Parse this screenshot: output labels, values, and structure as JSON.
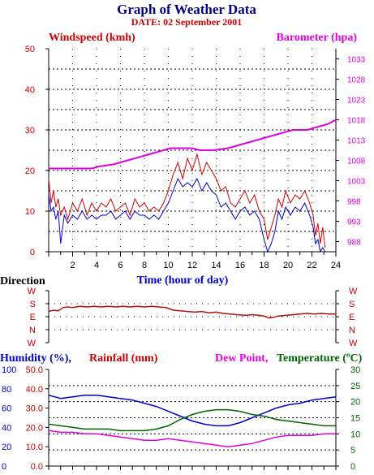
{
  "header": {
    "title": "Graph of Weather Data",
    "date": "DATE: 02 September 2001"
  },
  "colors": {
    "wind_speed": "#cc0000",
    "wind_gust": "#0000cc",
    "barometer": "#e000e0",
    "direction": "#b01010",
    "humidity": "#0000cc",
    "rainfall": "#cc0000",
    "dew_point": "#e000e0",
    "temperature": "#006400",
    "title": "#000080"
  },
  "chart_data": [
    {
      "id": "wind",
      "type": "line",
      "left_label": "Windspeed (kmh)",
      "right_label": "Barometer (hpa)",
      "xlabel": "Time (hour of day)",
      "xlim": [
        0,
        24
      ],
      "x_ticks": [
        2,
        4,
        6,
        8,
        10,
        12,
        14,
        16,
        18,
        20,
        22,
        24
      ],
      "ylim": [
        0,
        50
      ],
      "y_ticks": [
        0,
        10,
        20,
        30,
        40,
        50
      ],
      "y2lim": [
        985.5,
        1035.5
      ],
      "y2_ticks": [
        988,
        993,
        998,
        1003,
        1008,
        1013,
        1018,
        1023,
        1028,
        1033
      ],
      "grid": "dotted",
      "series": [
        {
          "role": "windspeed",
          "axis": "left",
          "x": [
            0,
            0.2,
            0.4,
            0.6,
            0.8,
            1.0,
            1.3,
            1.6,
            2.0,
            2.4,
            2.8,
            3.2,
            3.6,
            4.0,
            4.4,
            4.8,
            5.2,
            5.6,
            6.0,
            6.4,
            6.8,
            7.2,
            7.6,
            8.0,
            8.4,
            8.8,
            9.2,
            9.6,
            10.0,
            10.4,
            10.8,
            11.2,
            11.6,
            12.0,
            12.4,
            12.8,
            13.2,
            13.6,
            14.0,
            14.4,
            14.8,
            15.2,
            15.6,
            16.0,
            16.4,
            16.8,
            17.2,
            17.6,
            18.0,
            18.3,
            18.6,
            18.9,
            19.2,
            19.5,
            19.8,
            20.2,
            20.6,
            21.0,
            21.4,
            21.8,
            22.1,
            22.3,
            22.5,
            22.7,
            22.9,
            23.1
          ],
          "y": [
            18,
            12,
            15,
            11,
            13,
            9,
            11,
            8,
            12,
            10,
            13,
            9,
            12,
            10,
            12,
            11,
            13,
            10,
            11,
            12,
            9,
            13,
            11,
            12,
            10,
            11,
            10,
            12,
            15,
            19,
            22,
            18,
            23,
            20,
            24,
            19,
            22,
            20,
            18,
            15,
            16,
            12,
            11,
            13,
            15,
            12,
            14,
            10,
            8,
            3,
            6,
            9,
            13,
            11,
            15,
            12,
            14,
            13,
            15,
            12,
            9,
            4,
            7,
            2,
            6,
            1
          ]
        },
        {
          "role": "gust",
          "axis": "left",
          "x": [
            0,
            0.2,
            0.4,
            0.6,
            0.8,
            1.0,
            1.3,
            1.6,
            2.0,
            2.4,
            2.8,
            3.2,
            3.6,
            4.0,
            4.4,
            4.8,
            5.2,
            5.6,
            6.0,
            6.4,
            6.8,
            7.2,
            7.6,
            8.0,
            8.4,
            8.8,
            9.2,
            9.6,
            10.0,
            10.4,
            10.8,
            11.2,
            11.6,
            12.0,
            12.4,
            12.8,
            13.2,
            13.6,
            14.0,
            14.4,
            14.8,
            15.2,
            15.6,
            16.0,
            16.4,
            16.8,
            17.2,
            17.6,
            18.0,
            18.3,
            18.6,
            18.9,
            19.2,
            19.5,
            19.8,
            20.2,
            20.6,
            21.0,
            21.4,
            21.8,
            22.1,
            22.3,
            22.5,
            22.7,
            22.9,
            23.1
          ],
          "y": [
            14,
            10,
            11,
            8,
            10,
            2,
            9,
            7,
            9,
            8,
            10,
            8,
            9,
            8,
            9,
            9,
            10,
            8,
            9,
            10,
            8,
            10,
            9,
            9,
            8,
            9,
            8,
            10,
            12,
            15,
            18,
            16,
            17,
            16,
            18,
            15,
            17,
            15,
            14,
            11,
            12,
            10,
            8,
            10,
            11,
            9,
            10,
            8,
            3,
            0,
            2,
            5,
            10,
            8,
            11,
            9,
            11,
            10,
            12,
            9,
            6,
            2,
            3,
            0,
            1,
            0
          ]
        },
        {
          "role": "barometer",
          "axis": "right",
          "x": [
            0,
            2.4,
            3.6,
            4.2,
            5.4,
            6.0,
            6.6,
            7.2,
            7.8,
            8.4,
            9.0,
            9.6,
            10.2,
            10.8,
            12.0,
            12.6,
            13.8,
            15.0,
            15.6,
            16.2,
            16.8,
            17.4,
            18.0,
            18.6,
            19.2,
            19.8,
            20.4,
            21.6,
            22.2,
            22.8,
            23.4,
            24.0
          ],
          "y": [
            1006,
            1006,
            1006,
            1006.5,
            1007,
            1007.5,
            1008,
            1008.5,
            1009,
            1009.5,
            1010,
            1010.5,
            1011,
            1011,
            1011,
            1010.5,
            1010.5,
            1011,
            1011.5,
            1012,
            1012.5,
            1013,
            1013.5,
            1014,
            1014.5,
            1015,
            1015.5,
            1015.5,
            1016,
            1016.5,
            1017,
            1018
          ]
        }
      ]
    },
    {
      "id": "direction",
      "type": "line",
      "title": "Direction",
      "xlim": [
        0,
        24
      ],
      "y_categories": [
        "W",
        "S",
        "E",
        "N",
        "W"
      ],
      "series": [
        {
          "role": "direction",
          "x": [
            0,
            0.4,
            0.8,
            1.2,
            1.6,
            2.0,
            2.6,
            3.2,
            3.8,
            4.4,
            5.0,
            5.6,
            6.2,
            6.8,
            7.4,
            8.0,
            8.6,
            9.2,
            9.8,
            10.4,
            11.0,
            11.6,
            12.2,
            12.8,
            13.4,
            14.0,
            14.6,
            15.2,
            15.8,
            16.4,
            17.0,
            17.6,
            18.0,
            18.4,
            18.8,
            19.2,
            19.8,
            20.4,
            21.0,
            21.6,
            22.2,
            22.8,
            23.4,
            24.0
          ],
          "y": [
            1.6,
            1.5,
            1.55,
            1.3,
            1.25,
            1.3,
            1.2,
            1.25,
            1.2,
            1.25,
            1.2,
            1.25,
            1.2,
            1.25,
            1.2,
            1.25,
            1.2,
            1.25,
            1.3,
            1.5,
            1.55,
            1.6,
            1.65,
            1.6,
            1.7,
            1.65,
            1.75,
            1.8,
            1.85,
            1.9,
            1.85,
            1.9,
            1.95,
            2.1,
            2.05,
            1.95,
            1.9,
            1.85,
            1.8,
            1.75,
            1.8,
            1.75,
            1.8,
            1.8
          ]
        }
      ]
    },
    {
      "id": "humidity",
      "type": "line",
      "humidity_label": "Humidity (%),",
      "rainfall_label": "Rainfall (mm)",
      "dew_label": "Dew Point,",
      "temp_label": "Temperature (ºC)",
      "xlim": [
        0,
        24
      ],
      "humidity_ticks": [
        0,
        20,
        40,
        60,
        80,
        100
      ],
      "rainfall_ticks": [
        "0.0",
        "10.0",
        "20.0",
        "30.0",
        "40.0",
        "50.0"
      ],
      "temp_ticks": [
        0,
        5,
        10,
        15,
        20,
        25,
        30
      ],
      "ylim": [
        0,
        30
      ],
      "series": [
        {
          "role": "humidity",
          "axis": "temp",
          "x": [
            0,
            1,
            2,
            3,
            4,
            5,
            6,
            7,
            8,
            9,
            10,
            11,
            12,
            13,
            14,
            15,
            16,
            17,
            18,
            19,
            20,
            21,
            22,
            23,
            24
          ],
          "y": [
            22,
            21,
            21.5,
            22,
            22,
            21.5,
            21,
            20.5,
            19.5,
            18.5,
            17,
            15.5,
            14,
            13,
            12.5,
            12.5,
            13.5,
            15,
            16.5,
            18,
            19,
            19.5,
            20.5,
            21,
            21.5
          ]
        },
        {
          "role": "temperature",
          "axis": "temp",
          "x": [
            0,
            1,
            2,
            3,
            4,
            5,
            6,
            7,
            8,
            9,
            10,
            11,
            12,
            13,
            14,
            15,
            16,
            17,
            18,
            19,
            20,
            21,
            22,
            23,
            24
          ],
          "y": [
            13,
            12.5,
            12,
            11.5,
            11.5,
            11.5,
            11,
            11,
            11,
            11.5,
            12.5,
            14.5,
            16,
            17,
            17.5,
            17.5,
            17,
            16,
            15.5,
            14.5,
            14,
            13.5,
            13,
            12.5,
            12.5
          ]
        },
        {
          "role": "dew_point",
          "axis": "temp",
          "x": [
            0,
            1,
            2,
            3,
            4,
            5,
            6,
            7,
            8,
            9,
            10,
            11,
            12,
            13,
            14,
            15,
            16,
            17,
            18,
            19,
            20,
            21,
            22,
            23,
            24
          ],
          "y": [
            11,
            10.5,
            10.5,
            10,
            10,
            9.5,
            9,
            8.5,
            8,
            8,
            8.5,
            8,
            7.5,
            7,
            6.5,
            6,
            6.5,
            7,
            8,
            9,
            9.5,
            9.5,
            9.5,
            10,
            10
          ]
        }
      ]
    }
  ]
}
